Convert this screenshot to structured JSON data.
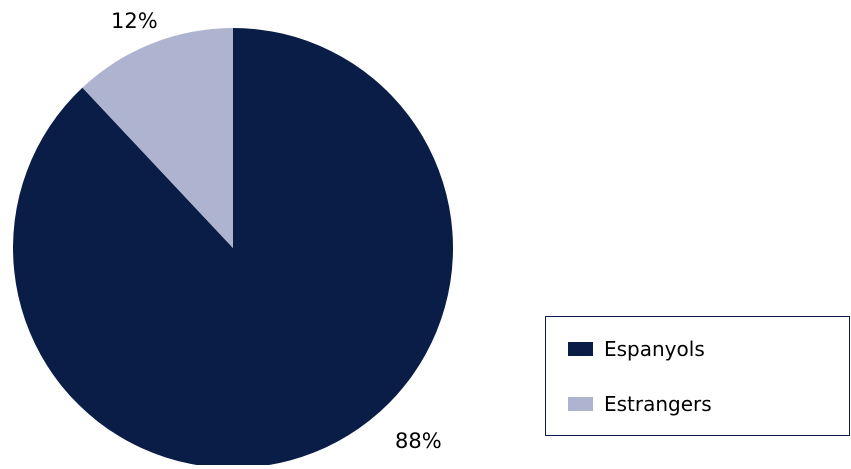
{
  "chart_data": {
    "type": "pie",
    "slices": [
      {
        "label": "Espanyols",
        "value": 88,
        "value_label": "88%",
        "color": "#0a1d47"
      },
      {
        "label": "Estrangers",
        "value": 12,
        "value_label": "12%",
        "color": "#aeb4cf"
      }
    ],
    "legend": {
      "placement": "bottom-right",
      "items": [
        "Espanyols",
        "Estrangers"
      ]
    }
  }
}
